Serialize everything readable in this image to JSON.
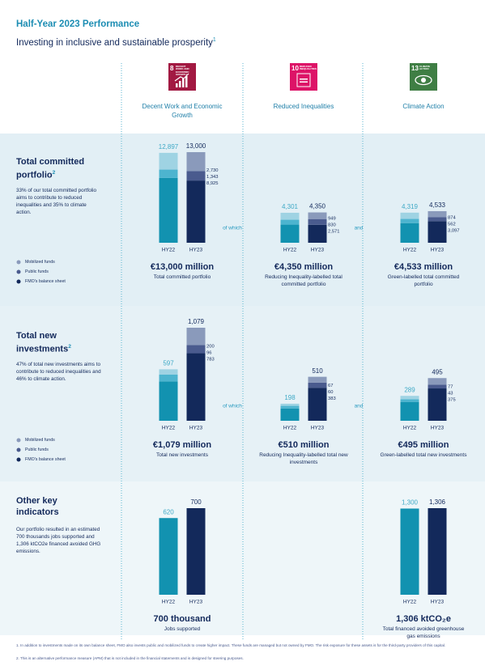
{
  "header": {
    "title": "Half-Year 2023 Performance",
    "subtitle": "Investing in inclusive and sustainable prosperity",
    "subtitle_note": "1"
  },
  "columns": [
    {
      "icon_number": "8",
      "icon_text": "DECENT WORK AND ECONOMIC GROWTH",
      "icon_color": "#a21942",
      "label": "Decent Work and Economic Growth"
    },
    {
      "icon_number": "10",
      "icon_text": "REDUCED INEQUALITIES",
      "icon_color": "#dd1367",
      "label": "Reduced Inequalities"
    },
    {
      "icon_number": "13",
      "icon_text": "CLIMATE ACTION",
      "icon_color": "#3f7e44",
      "label": "Climate Action"
    }
  ],
  "rows": [
    {
      "title": "Total committed portfolio",
      "title_note": "2",
      "description": "33% of our total committed portfolio aims to contribute to reduced inequalities and 35% to climate action.",
      "legend": [
        {
          "label": "Mobilized funds",
          "color": "#8a9abb"
        },
        {
          "label": "Public funds",
          "color": "#4a5b8e"
        },
        {
          "label": "FMO's balance sheet",
          "color": "#13295b"
        }
      ],
      "connectors": [
        "of which",
        "and"
      ]
    },
    {
      "title": "Total new investments",
      "title_note": "2",
      "description": "47% of total new investments aims to contribute to reduced inequalities and 46% to climate action.",
      "legend": [
        {
          "label": "Mobilized funds",
          "color": "#8a9abb"
        },
        {
          "label": "Public funds",
          "color": "#4a5b8e"
        },
        {
          "label": "FMO's balance sheet",
          "color": "#13295b"
        }
      ],
      "connectors": [
        "of which",
        "and"
      ]
    },
    {
      "title": "Other key indicators",
      "description": "Our portfolio resulted in an estimated 700 thousands jobs supported and 1,306 ktCO2e financed avoided GHG emissions."
    }
  ],
  "chart_data": [
    {
      "type": "stacked-bar",
      "categories": [
        "HY22",
        "HY23"
      ],
      "totals": [
        12897,
        13000
      ],
      "totals_labels": [
        "12,897",
        "13,000"
      ],
      "label_colors": [
        "#3fa9c6",
        "#13295b"
      ],
      "series": [
        {
          "colors": [
            "#9fd3e3",
            "#8a9abb"
          ],
          "values": [
            2400,
            2730
          ],
          "value_labels": [
            null,
            "2,730"
          ]
        },
        {
          "colors": [
            "#4db4cf",
            "#4a5b8e"
          ],
          "values": [
            1200,
            1343
          ],
          "value_labels": [
            null,
            "1,343"
          ]
        },
        {
          "colors": [
            "#1292b0",
            "#13295b"
          ],
          "values": [
            9297,
            8925
          ],
          "value_labels": [
            null,
            "8,925"
          ]
        }
      ],
      "caption_value": "€13,000 million",
      "caption": "Total committed portfolio"
    },
    {
      "type": "stacked-bar",
      "categories": [
        "HY22",
        "HY23"
      ],
      "totals": [
        4301,
        4350
      ],
      "totals_labels": [
        "4,301",
        "4,350"
      ],
      "label_colors": [
        "#3fa9c6",
        "#13295b"
      ],
      "series": [
        {
          "colors": [
            "#9fd3e3",
            "#8a9abb"
          ],
          "values": [
            1000,
            949
          ],
          "value_labels": [
            null,
            "949"
          ]
        },
        {
          "colors": [
            "#4db4cf",
            "#4a5b8e"
          ],
          "values": [
            700,
            830
          ],
          "value_labels": [
            null,
            "830"
          ]
        },
        {
          "colors": [
            "#1292b0",
            "#13295b"
          ],
          "values": [
            2601,
            2571
          ],
          "value_labels": [
            null,
            "2,571"
          ]
        }
      ],
      "caption_value": "€4,350 million",
      "caption": "Reducing Inequality-labelled total committed portfolio"
    },
    {
      "type": "stacked-bar",
      "categories": [
        "HY22",
        "HY23"
      ],
      "totals": [
        4319,
        4533
      ],
      "totals_labels": [
        "4,319",
        "4,533"
      ],
      "label_colors": [
        "#3fa9c6",
        "#13295b"
      ],
      "series": [
        {
          "colors": [
            "#9fd3e3",
            "#8a9abb"
          ],
          "values": [
            900,
            874
          ],
          "value_labels": [
            null,
            "874"
          ]
        },
        {
          "colors": [
            "#4db4cf",
            "#4a5b8e"
          ],
          "values": [
            600,
            562
          ],
          "value_labels": [
            null,
            "562"
          ]
        },
        {
          "colors": [
            "#1292b0",
            "#13295b"
          ],
          "values": [
            2819,
            3097
          ],
          "value_labels": [
            null,
            "3,097"
          ]
        }
      ],
      "caption_value": "€4,533 million",
      "caption": "Green-labelled total committed portfolio"
    },
    {
      "type": "stacked-bar",
      "categories": [
        "HY22",
        "HY23"
      ],
      "totals": [
        597,
        1079
      ],
      "totals_labels": [
        "597",
        "1,079"
      ],
      "label_colors": [
        "#3fa9c6",
        "#13295b"
      ],
      "series": [
        {
          "colors": [
            "#9fd3e3",
            "#8a9abb"
          ],
          "values": [
            60,
            200
          ],
          "value_labels": [
            null,
            "200"
          ]
        },
        {
          "colors": [
            "#4db4cf",
            "#4a5b8e"
          ],
          "values": [
            80,
            96
          ],
          "value_labels": [
            null,
            "96"
          ]
        },
        {
          "colors": [
            "#1292b0",
            "#13295b"
          ],
          "values": [
            457,
            783
          ],
          "value_labels": [
            null,
            "783"
          ]
        }
      ],
      "caption_value": "€1,079 million",
      "caption": "Total new investments"
    },
    {
      "type": "stacked-bar",
      "categories": [
        "HY22",
        "HY23"
      ],
      "totals": [
        198,
        510
      ],
      "totals_labels": [
        "198",
        "510"
      ],
      "label_colors": [
        "#3fa9c6",
        "#13295b"
      ],
      "series": [
        {
          "colors": [
            "#9fd3e3",
            "#8a9abb"
          ],
          "values": [
            25,
            67
          ],
          "value_labels": [
            null,
            "67"
          ]
        },
        {
          "colors": [
            "#4db4cf",
            "#4a5b8e"
          ],
          "values": [
            30,
            60
          ],
          "value_labels": [
            null,
            "60"
          ]
        },
        {
          "colors": [
            "#1292b0",
            "#13295b"
          ],
          "values": [
            143,
            383
          ],
          "value_labels": [
            null,
            "383"
          ]
        }
      ],
      "caption_value": "€510 million",
      "caption": "Reducing Inequality-labelled total new investments"
    },
    {
      "type": "stacked-bar",
      "categories": [
        "HY22",
        "HY23"
      ],
      "totals": [
        289,
        495
      ],
      "totals_labels": [
        "289",
        "495"
      ],
      "label_colors": [
        "#3fa9c6",
        "#13295b"
      ],
      "series": [
        {
          "colors": [
            "#9fd3e3",
            "#8a9abb"
          ],
          "values": [
            40,
            77
          ],
          "value_labels": [
            null,
            "77"
          ]
        },
        {
          "colors": [
            "#4db4cf",
            "#4a5b8e"
          ],
          "values": [
            30,
            43
          ],
          "value_labels": [
            null,
            "43"
          ]
        },
        {
          "colors": [
            "#1292b0",
            "#13295b"
          ],
          "values": [
            219,
            375
          ],
          "value_labels": [
            null,
            "375"
          ]
        }
      ],
      "caption_value": "€495 million",
      "caption": "Green-labelled total new investments"
    },
    {
      "type": "bar",
      "categories": [
        "HY22",
        "HY23"
      ],
      "label_colors": [
        "#3fa9c6",
        "#13295b"
      ],
      "series": [
        {
          "colors": [
            "#1292b0",
            "#13295b"
          ],
          "values": [
            620,
            700
          ]
        }
      ],
      "caption_value": "700 thousand",
      "caption": "Jobs supported"
    },
    {
      "type": "bar",
      "categories": [
        "HY22",
        "HY23"
      ],
      "label_colors": [
        "#3fa9c6",
        "#13295b"
      ],
      "series": [
        {
          "colors": [
            "#1292b0",
            "#13295b"
          ],
          "values": [
            1300,
            1306
          ],
          "value_labels": [
            "1,300",
            "1,306"
          ]
        }
      ],
      "caption_value": "1,306 ktCO₂e",
      "caption": "Total financed avoided greenhouse gas emissions"
    }
  ],
  "footnotes": [
    "1.  In addition to investments made on its own balance sheet, FMO also invests public and mobilized funds to create higher impact. These funds are managed but not owned by FMO. The risk exposure for these assets is for the third-party providers of this capital.",
    "2.  This is an alternative performance measure (APM) that is not included in the financial statements and is designed for steering purposes."
  ]
}
